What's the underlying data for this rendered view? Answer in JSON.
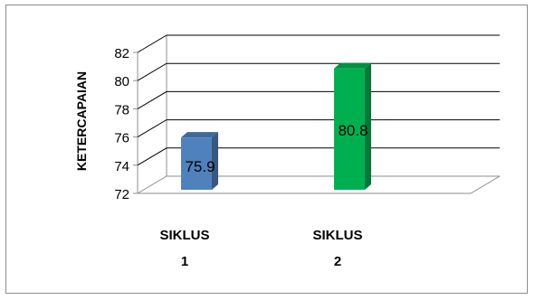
{
  "chart_data": {
    "type": "bar",
    "three_d": true,
    "categories": [
      [
        "SIKLUS",
        "1"
      ],
      [
        "SIKLUS",
        "2"
      ]
    ],
    "values": [
      75.9,
      80.8
    ],
    "data_labels": [
      "75.9",
      "80.8"
    ],
    "bar_colors": [
      "#4f81bd",
      "#00b050"
    ],
    "ylabel": "KETERCAPAIAN",
    "ylim": [
      72,
      82
    ],
    "yticks": [
      72,
      74,
      76,
      78,
      80,
      82
    ],
    "grid": true,
    "legend": "none"
  }
}
